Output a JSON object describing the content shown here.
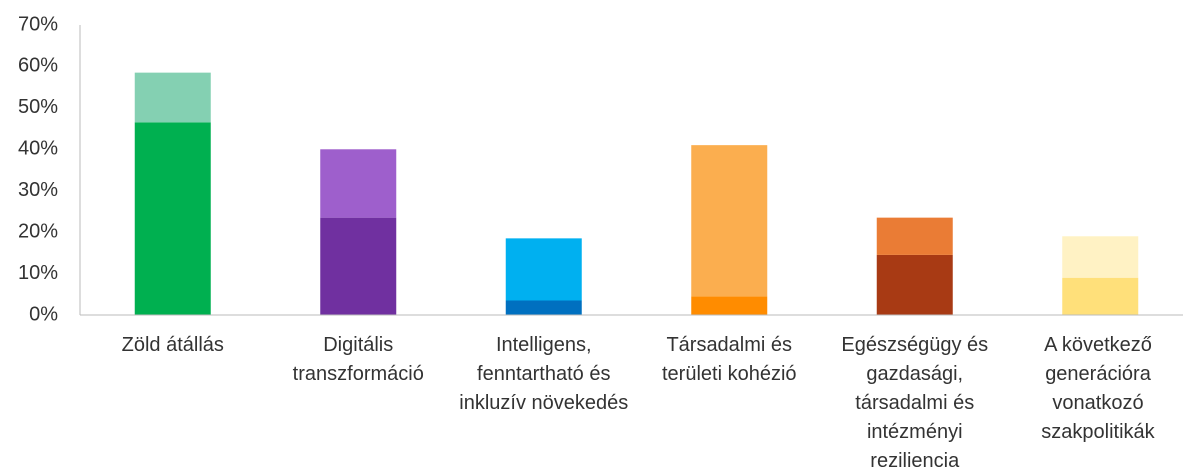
{
  "chart_data": {
    "type": "stacked_bar",
    "categories": [
      "Zöld átállás",
      "Digitális transzformáció",
      "Intelligens, fenntartható és inkluzív növekedés",
      "Társadalmi és területi kohézió",
      "Egészségügy és gazdasági, társadalmi és intézményi reziliencia",
      "A következő generációra vonatkozó szakpolitikák"
    ],
    "series": [
      {
        "colors": [
          "#00b050",
          "#7030a0",
          "#0070c0",
          "#ff8c00",
          "#a83a14",
          "#ffe07a"
        ],
        "values": [
          46.5,
          23.5,
          3.5,
          4.5,
          14.5,
          9
        ]
      },
      {
        "colors": [
          "#84d0b2",
          "#9e5fcc",
          "#00b0f0",
          "#fbae4f",
          "#ea7c35",
          "#fff2c4"
        ],
        "values": [
          12,
          16.5,
          15,
          36.5,
          9,
          10
        ]
      }
    ],
    "ylim": [
      0,
      70
    ],
    "yticks": [
      {
        "value": 0,
        "label": "0%"
      },
      {
        "value": 10,
        "label": "10%"
      },
      {
        "value": 20,
        "label": "20%"
      },
      {
        "value": 30,
        "label": "30%"
      },
      {
        "value": 40,
        "label": "40%"
      },
      {
        "value": 50,
        "label": "50%"
      },
      {
        "value": 60,
        "label": "60%"
      },
      {
        "value": 70,
        "label": "70%"
      }
    ],
    "grid": false
  }
}
